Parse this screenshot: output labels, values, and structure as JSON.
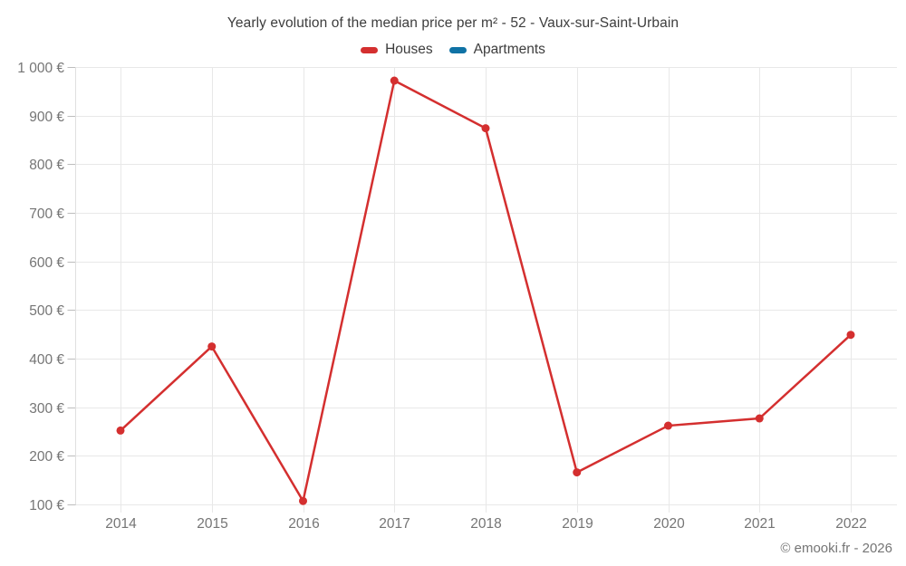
{
  "page": {
    "title": "Yearly evolution of the median price per m² - 52 - Vaux-sur-Saint-Urbain",
    "credit": "© emooki.fr - 2026"
  },
  "colors": {
    "houses": "#d42f2f",
    "apartments": "#0f72a5",
    "grid": "#e8e8e8",
    "axis_spine": "#e0e0e0",
    "tick": "#bdbdbd",
    "axis_text": "#757575",
    "title_text": "#3d3d3d"
  },
  "legend": {
    "items": [
      {
        "label": "Houses",
        "color_key": "houses"
      },
      {
        "label": "Apartments",
        "color_key": "apartments"
      }
    ]
  },
  "chart_data": {
    "type": "line",
    "title": "Yearly evolution of the median price per m² - 52 - Vaux-sur-Saint-Urbain",
    "categories": [
      "2014",
      "2015",
      "2016",
      "2017",
      "2018",
      "2019",
      "2020",
      "2021",
      "2022"
    ],
    "series": [
      {
        "name": "Houses",
        "color": "#d42f2f",
        "values": [
          252,
          425,
          107,
          972,
          874,
          166,
          262,
          277,
          449
        ]
      },
      {
        "name": "Apartments",
        "color": "#0f72a5",
        "values": []
      }
    ],
    "xlabel": "",
    "ylabel": "",
    "ylim": [
      100,
      1000
    ],
    "ytick_step": 100,
    "ytick_labels": [
      "100 €",
      "200 €",
      "300 €",
      "400 €",
      "500 €",
      "600 €",
      "700 €",
      "800 €",
      "900 €",
      "1 000 €"
    ],
    "grid": true,
    "legend_position": "top",
    "marker": "circle"
  }
}
